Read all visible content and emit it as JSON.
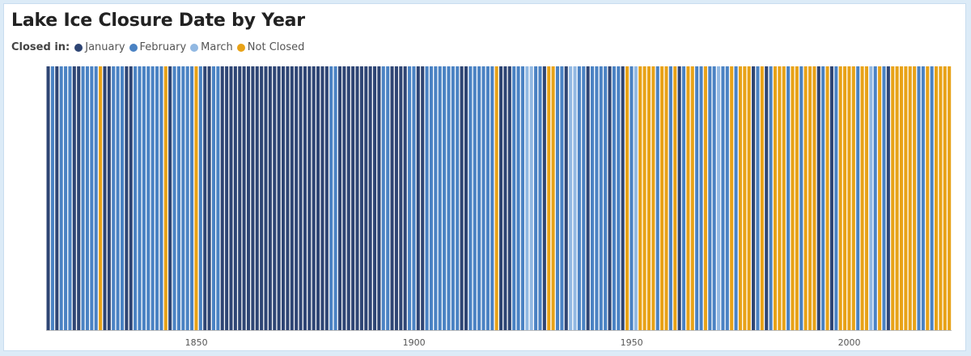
{
  "chart_data": {
    "type": "bar",
    "title": "Lake Ice Closure Date by Year",
    "legend_title": "Closed in:",
    "legend_placement": "top-left",
    "categories": [
      "January",
      "February",
      "March",
      "Not Closed"
    ],
    "colors": {
      "January": "#2e4574",
      "February": "#4a82c3",
      "March": "#91b8e2",
      "Not Closed": "#e8a217"
    },
    "x_range": [
      1816,
      2023
    ],
    "x_ticks": [
      "1850",
      "1900",
      "1950",
      "2000"
    ],
    "grid": false,
    "segments": [
      {
        "from": 1816,
        "to": 1816,
        "cat": "January"
      },
      {
        "from": 1817,
        "to": 1817,
        "cat": "February"
      },
      {
        "from": 1818,
        "to": 1818,
        "cat": "January"
      },
      {
        "from": 1819,
        "to": 1821,
        "cat": "February"
      },
      {
        "from": 1822,
        "to": 1823,
        "cat": "January"
      },
      {
        "from": 1824,
        "to": 1827,
        "cat": "February"
      },
      {
        "from": 1828,
        "to": 1828,
        "cat": "Not Closed"
      },
      {
        "from": 1829,
        "to": 1830,
        "cat": "January"
      },
      {
        "from": 1831,
        "to": 1833,
        "cat": "February"
      },
      {
        "from": 1834,
        "to": 1835,
        "cat": "January"
      },
      {
        "from": 1836,
        "to": 1842,
        "cat": "February"
      },
      {
        "from": 1843,
        "to": 1843,
        "cat": "Not Closed"
      },
      {
        "from": 1844,
        "to": 1844,
        "cat": "January"
      },
      {
        "from": 1845,
        "to": 1849,
        "cat": "February"
      },
      {
        "from": 1850,
        "to": 1850,
        "cat": "Not Closed"
      },
      {
        "from": 1851,
        "to": 1851,
        "cat": "February"
      },
      {
        "from": 1852,
        "to": 1853,
        "cat": "January"
      },
      {
        "from": 1854,
        "to": 1855,
        "cat": "February"
      },
      {
        "from": 1856,
        "to": 1880,
        "cat": "January"
      },
      {
        "from": 1881,
        "to": 1882,
        "cat": "February"
      },
      {
        "from": 1883,
        "to": 1892,
        "cat": "January"
      },
      {
        "from": 1893,
        "to": 1894,
        "cat": "February"
      },
      {
        "from": 1895,
        "to": 1898,
        "cat": "January"
      },
      {
        "from": 1899,
        "to": 1900,
        "cat": "February"
      },
      {
        "from": 1901,
        "to": 1902,
        "cat": "January"
      },
      {
        "from": 1903,
        "to": 1910,
        "cat": "February"
      },
      {
        "from": 1911,
        "to": 1912,
        "cat": "January"
      },
      {
        "from": 1913,
        "to": 1918,
        "cat": "February"
      },
      {
        "from": 1919,
        "to": 1919,
        "cat": "Not Closed"
      },
      {
        "from": 1920,
        "to": 1922,
        "cat": "January"
      },
      {
        "from": 1923,
        "to": 1925,
        "cat": "February"
      },
      {
        "from": 1926,
        "to": 1927,
        "cat": "March"
      },
      {
        "from": 1928,
        "to": 1929,
        "cat": "February"
      },
      {
        "from": 1930,
        "to": 1930,
        "cat": "January"
      },
      {
        "from": 1931,
        "to": 1931,
        "cat": "Not Closed"
      },
      {
        "from": 1932,
        "to": 1932,
        "cat": "Not Closed"
      },
      {
        "from": 1933,
        "to": 1934,
        "cat": "February"
      },
      {
        "from": 1935,
        "to": 1935,
        "cat": "January"
      },
      {
        "from": 1936,
        "to": 1937,
        "cat": "March"
      },
      {
        "from": 1938,
        "to": 1939,
        "cat": "February"
      },
      {
        "from": 1940,
        "to": 1940,
        "cat": "January"
      },
      {
        "from": 1941,
        "to": 1944,
        "cat": "February"
      },
      {
        "from": 1945,
        "to": 1945,
        "cat": "January"
      },
      {
        "from": 1946,
        "to": 1947,
        "cat": "February"
      },
      {
        "from": 1948,
        "to": 1948,
        "cat": "January"
      },
      {
        "from": 1949,
        "to": 1949,
        "cat": "Not Closed"
      },
      {
        "from": 1950,
        "to": 1950,
        "cat": "February"
      },
      {
        "from": 1951,
        "to": 1951,
        "cat": "March"
      },
      {
        "from": 1952,
        "to": 1955,
        "cat": "Not Closed"
      },
      {
        "from": 1956,
        "to": 1956,
        "cat": "February"
      },
      {
        "from": 1957,
        "to": 1958,
        "cat": "Not Closed"
      },
      {
        "from": 1959,
        "to": 1959,
        "cat": "February"
      },
      {
        "from": 1960,
        "to": 1960,
        "cat": "Not Closed"
      },
      {
        "from": 1961,
        "to": 1961,
        "cat": "January"
      },
      {
        "from": 1962,
        "to": 1962,
        "cat": "February"
      },
      {
        "from": 1963,
        "to": 1964,
        "cat": "Not Closed"
      },
      {
        "from": 1965,
        "to": 1966,
        "cat": "February"
      },
      {
        "from": 1967,
        "to": 1967,
        "cat": "Not Closed"
      },
      {
        "from": 1968,
        "to": 1969,
        "cat": "February"
      },
      {
        "from": 1970,
        "to": 1970,
        "cat": "March"
      },
      {
        "from": 1971,
        "to": 1972,
        "cat": "February"
      },
      {
        "from": 1973,
        "to": 1973,
        "cat": "Not Closed"
      },
      {
        "from": 1974,
        "to": 1974,
        "cat": "February"
      },
      {
        "from": 1975,
        "to": 1977,
        "cat": "Not Closed"
      },
      {
        "from": 1978,
        "to": 1978,
        "cat": "January"
      },
      {
        "from": 1979,
        "to": 1979,
        "cat": "February"
      },
      {
        "from": 1980,
        "to": 1980,
        "cat": "Not Closed"
      },
      {
        "from": 1981,
        "to": 1981,
        "cat": "January"
      },
      {
        "from": 1982,
        "to": 1982,
        "cat": "February"
      },
      {
        "from": 1983,
        "to": 1985,
        "cat": "Not Closed"
      },
      {
        "from": 1986,
        "to": 1986,
        "cat": "February"
      },
      {
        "from": 1987,
        "to": 1988,
        "cat": "Not Closed"
      },
      {
        "from": 1989,
        "to": 1989,
        "cat": "February"
      },
      {
        "from": 1990,
        "to": 1992,
        "cat": "Not Closed"
      },
      {
        "from": 1993,
        "to": 1993,
        "cat": "January"
      },
      {
        "from": 1994,
        "to": 1994,
        "cat": "February"
      },
      {
        "from": 1995,
        "to": 1995,
        "cat": "Not Closed"
      },
      {
        "from": 1996,
        "to": 1996,
        "cat": "January"
      },
      {
        "from": 1997,
        "to": 1997,
        "cat": "February"
      },
      {
        "from": 1998,
        "to": 2001,
        "cat": "Not Closed"
      },
      {
        "from": 2002,
        "to": 2002,
        "cat": "February"
      },
      {
        "from": 2003,
        "to": 2004,
        "cat": "Not Closed"
      },
      {
        "from": 2005,
        "to": 2005,
        "cat": "March"
      },
      {
        "from": 2006,
        "to": 2006,
        "cat": "February"
      },
      {
        "from": 2007,
        "to": 2007,
        "cat": "Not Closed"
      },
      {
        "from": 2008,
        "to": 2008,
        "cat": "February"
      },
      {
        "from": 2009,
        "to": 2009,
        "cat": "January"
      },
      {
        "from": 2010,
        "to": 2015,
        "cat": "Not Closed"
      },
      {
        "from": 2016,
        "to": 2017,
        "cat": "February"
      },
      {
        "from": 2018,
        "to": 2018,
        "cat": "Not Closed"
      },
      {
        "from": 2019,
        "to": 2019,
        "cat": "February"
      },
      {
        "from": 2020,
        "to": 2023,
        "cat": "Not Closed"
      }
    ]
  }
}
